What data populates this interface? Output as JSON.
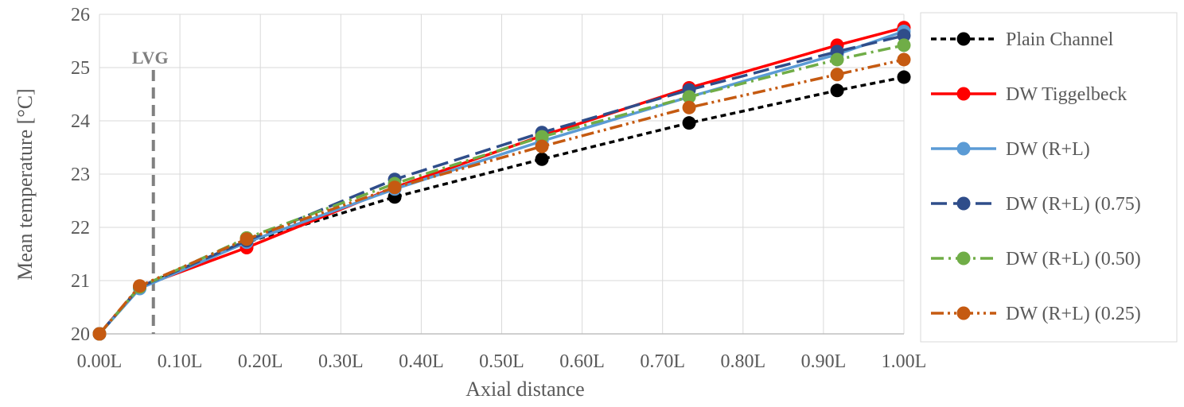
{
  "chart_data": {
    "type": "line",
    "title": "",
    "xlabel": "Axial distance",
    "ylabel": "Mean temperature [°C]",
    "xlim": [
      0,
      1
    ],
    "ylim": [
      20,
      26
    ],
    "x_ticks": [
      0,
      0.1,
      0.2,
      0.3,
      0.4,
      0.5,
      0.6,
      0.7,
      0.8,
      0.9,
      1.0
    ],
    "x_tick_labels": [
      "0.00L",
      "0.10L",
      "0.20L",
      "0.30L",
      "0.40L",
      "0.50L",
      "0.60L",
      "0.70L",
      "0.80L",
      "0.90L",
      "1.00L"
    ],
    "y_ticks": [
      20,
      21,
      22,
      23,
      24,
      25,
      26
    ],
    "y_tick_labels": [
      "20",
      "21",
      "22",
      "23",
      "24",
      "25",
      "26"
    ],
    "grid": true,
    "legend_position": "right",
    "annotations": [
      {
        "text": "LVG",
        "x": 0.067,
        "style": "vertical dashed line"
      }
    ],
    "x": [
      0,
      0.05,
      0.183,
      0.367,
      0.55,
      0.733,
      0.917,
      1.0
    ],
    "series": [
      {
        "name": "Plain Channel",
        "color": "#000000",
        "dash": "short-dash",
        "values": [
          20,
          20.88,
          21.72,
          22.57,
          23.28,
          23.96,
          24.57,
          24.82
        ]
      },
      {
        "name": "DW Tiggelbeck",
        "color": "#ff0000",
        "dash": "solid",
        "values": [
          20,
          20.88,
          21.62,
          22.75,
          23.72,
          24.62,
          25.42,
          25.75
        ]
      },
      {
        "name": "DW (R+L)",
        "color": "#5b9bd5",
        "dash": "solid",
        "values": [
          20,
          20.85,
          21.72,
          22.72,
          23.62,
          24.45,
          25.25,
          25.68
        ]
      },
      {
        "name": "DW (R+L) (0.75)",
        "color": "#2f4d8a",
        "dash": "long-dash",
        "values": [
          20,
          20.88,
          21.75,
          22.9,
          23.78,
          24.58,
          25.3,
          25.6
        ]
      },
      {
        "name": "DW (R+L) (0.50)",
        "color": "#70ad47",
        "dash": "dash-dot",
        "values": [
          20,
          20.88,
          21.8,
          22.82,
          23.7,
          24.45,
          25.15,
          25.42
        ]
      },
      {
        "name": "DW (R+L) (0.25)",
        "color": "#c55a11",
        "dash": "dash-dot-dot",
        "values": [
          20,
          20.9,
          21.78,
          22.75,
          23.52,
          24.25,
          24.87,
          25.15
        ]
      }
    ]
  }
}
